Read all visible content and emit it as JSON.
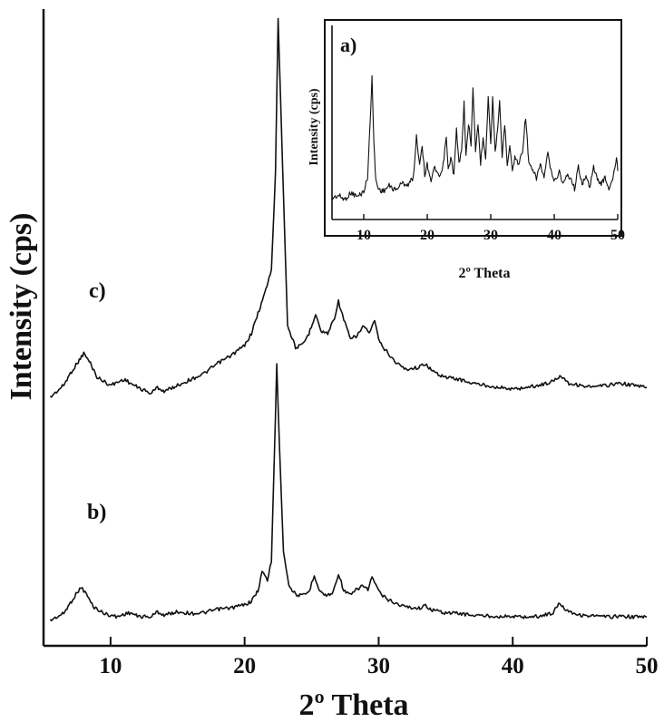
{
  "chart_data": [
    {
      "type": "line",
      "panel": "main",
      "xlabel": "2º Theta",
      "ylabel": "Intensity (cps)",
      "xlim": [
        5,
        50
      ],
      "xticks": [
        10,
        20,
        30,
        40,
        50
      ],
      "yticks_shown": false,
      "series": [
        {
          "name": "c)",
          "x": [
            5.5,
            6.5,
            7.0,
            7.5,
            8.0,
            8.5,
            9.0,
            10.0,
            11.0,
            12.0,
            13.0,
            13.5,
            14.0,
            15.0,
            16.0,
            17.0,
            18.0,
            19.0,
            20.0,
            20.5,
            21.0,
            21.5,
            22.0,
            22.3,
            22.5,
            22.8,
            23.2,
            23.8,
            24.3,
            24.8,
            25.3,
            25.7,
            26.2,
            26.7,
            27.0,
            27.4,
            27.9,
            28.4,
            28.9,
            29.3,
            29.7,
            30.1,
            30.6,
            31.2,
            32.0,
            33.0,
            33.5,
            34.0,
            35.0,
            36.0,
            37.0,
            38.0,
            39.0,
            40.0,
            41.0,
            42.0,
            43.0,
            43.6,
            44.2,
            45.0,
            46.0,
            47.0,
            48.0,
            49.0,
            50.0
          ],
          "y": [
            0.0,
            0.03,
            0.06,
            0.085,
            0.11,
            0.085,
            0.05,
            0.03,
            0.045,
            0.025,
            0.01,
            0.025,
            0.015,
            0.03,
            0.045,
            0.06,
            0.085,
            0.105,
            0.13,
            0.16,
            0.21,
            0.26,
            0.32,
            0.56,
            0.95,
            0.62,
            0.18,
            0.125,
            0.13,
            0.16,
            0.21,
            0.165,
            0.16,
            0.2,
            0.24,
            0.195,
            0.145,
            0.155,
            0.18,
            0.16,
            0.19,
            0.135,
            0.115,
            0.09,
            0.07,
            0.075,
            0.085,
            0.065,
            0.05,
            0.045,
            0.035,
            0.03,
            0.025,
            0.02,
            0.025,
            0.03,
            0.04,
            0.055,
            0.035,
            0.03,
            0.025,
            0.03,
            0.035,
            0.03,
            0.025
          ]
        },
        {
          "name": "b)",
          "x": [
            5.5,
            6.5,
            7.0,
            7.5,
            7.8,
            8.2,
            8.7,
            9.5,
            10.5,
            11.0,
            11.5,
            12.0,
            13.0,
            13.5,
            14.0,
            14.5,
            15.0,
            16.0,
            17.0,
            18.0,
            19.0,
            20.0,
            20.5,
            21.0,
            21.3,
            21.7,
            22.0,
            22.2,
            22.4,
            22.6,
            22.9,
            23.3,
            23.8,
            24.3,
            24.8,
            25.2,
            25.6,
            26.1,
            26.6,
            27.0,
            27.4,
            27.9,
            28.4,
            28.8,
            29.2,
            29.5,
            29.9,
            30.3,
            30.8,
            31.5,
            32.2,
            33.0,
            33.5,
            34.0,
            35.0,
            36.0,
            37.0,
            38.0,
            39.0,
            40.0,
            41.0,
            42.0,
            43.0,
            43.5,
            44.0,
            45.0,
            46.0,
            47.0,
            48.0,
            49.0,
            50.0
          ],
          "y": [
            0.0,
            0.02,
            0.05,
            0.08,
            0.095,
            0.075,
            0.04,
            0.02,
            0.01,
            0.018,
            0.022,
            0.012,
            0.01,
            0.025,
            0.015,
            0.02,
            0.025,
            0.02,
            0.022,
            0.032,
            0.036,
            0.045,
            0.055,
            0.085,
            0.14,
            0.115,
            0.17,
            0.45,
            0.73,
            0.5,
            0.2,
            0.1,
            0.075,
            0.07,
            0.082,
            0.13,
            0.085,
            0.07,
            0.08,
            0.135,
            0.085,
            0.072,
            0.09,
            0.1,
            0.088,
            0.125,
            0.09,
            0.07,
            0.058,
            0.045,
            0.038,
            0.035,
            0.042,
            0.03,
            0.022,
            0.02,
            0.015,
            0.013,
            0.012,
            0.011,
            0.01,
            0.012,
            0.022,
            0.05,
            0.03,
            0.015,
            0.013,
            0.01,
            0.012,
            0.01,
            0.01
          ]
        }
      ],
      "curve_labels": [
        "c)",
        "b)"
      ]
    },
    {
      "type": "line",
      "panel": "inset",
      "xlabel": "2º Theta",
      "ylabel": "Intensity (cps)",
      "xlim": [
        5,
        50
      ],
      "xticks": [
        10,
        20,
        30,
        40,
        50
      ],
      "yticks_shown": false,
      "series": [
        {
          "name": "a)",
          "x": [
            5.0,
            6.0,
            7.0,
            8.0,
            9.0,
            10.0,
            10.6,
            11.0,
            11.3,
            11.6,
            11.9,
            12.3,
            13.0,
            14.0,
            15.0,
            16.0,
            17.0,
            17.8,
            18.3,
            18.8,
            19.2,
            19.6,
            20.0,
            20.6,
            21.2,
            21.8,
            22.4,
            23.0,
            23.3,
            23.7,
            24.2,
            24.6,
            25.0,
            25.4,
            25.8,
            26.1,
            26.5,
            26.9,
            27.2,
            27.6,
            28.0,
            28.4,
            28.8,
            29.2,
            29.6,
            30.0,
            30.3,
            30.7,
            31.1,
            31.4,
            31.8,
            32.2,
            32.6,
            33.0,
            33.4,
            33.8,
            34.4,
            35.0,
            35.5,
            36.0,
            36.6,
            37.2,
            37.8,
            38.4,
            39.0,
            39.6,
            40.2,
            40.8,
            41.4,
            42.0,
            42.6,
            43.2,
            43.8,
            44.4,
            45.0,
            45.6,
            46.2,
            46.8,
            47.4,
            48.0,
            48.6,
            49.2,
            49.8,
            50.0
          ],
          "y": [
            0.05,
            0.07,
            0.04,
            0.09,
            0.06,
            0.1,
            0.2,
            0.6,
            0.95,
            0.45,
            0.18,
            0.12,
            0.1,
            0.14,
            0.11,
            0.16,
            0.15,
            0.2,
            0.5,
            0.3,
            0.45,
            0.22,
            0.3,
            0.18,
            0.28,
            0.2,
            0.25,
            0.5,
            0.25,
            0.35,
            0.22,
            0.55,
            0.3,
            0.4,
            0.75,
            0.35,
            0.6,
            0.45,
            0.85,
            0.4,
            0.6,
            0.3,
            0.5,
            0.35,
            0.8,
            0.45,
            0.78,
            0.4,
            0.55,
            0.75,
            0.35,
            0.6,
            0.3,
            0.45,
            0.25,
            0.35,
            0.3,
            0.4,
            0.65,
            0.3,
            0.25,
            0.2,
            0.3,
            0.2,
            0.38,
            0.22,
            0.18,
            0.25,
            0.15,
            0.22,
            0.2,
            0.12,
            0.28,
            0.16,
            0.2,
            0.14,
            0.28,
            0.18,
            0.16,
            0.2,
            0.12,
            0.18,
            0.35,
            0.25
          ]
        }
      ],
      "curve_labels": [
        "a)"
      ]
    }
  ],
  "colors": {
    "line": "#111111",
    "axis": "#111111",
    "background": "#ffffff"
  }
}
